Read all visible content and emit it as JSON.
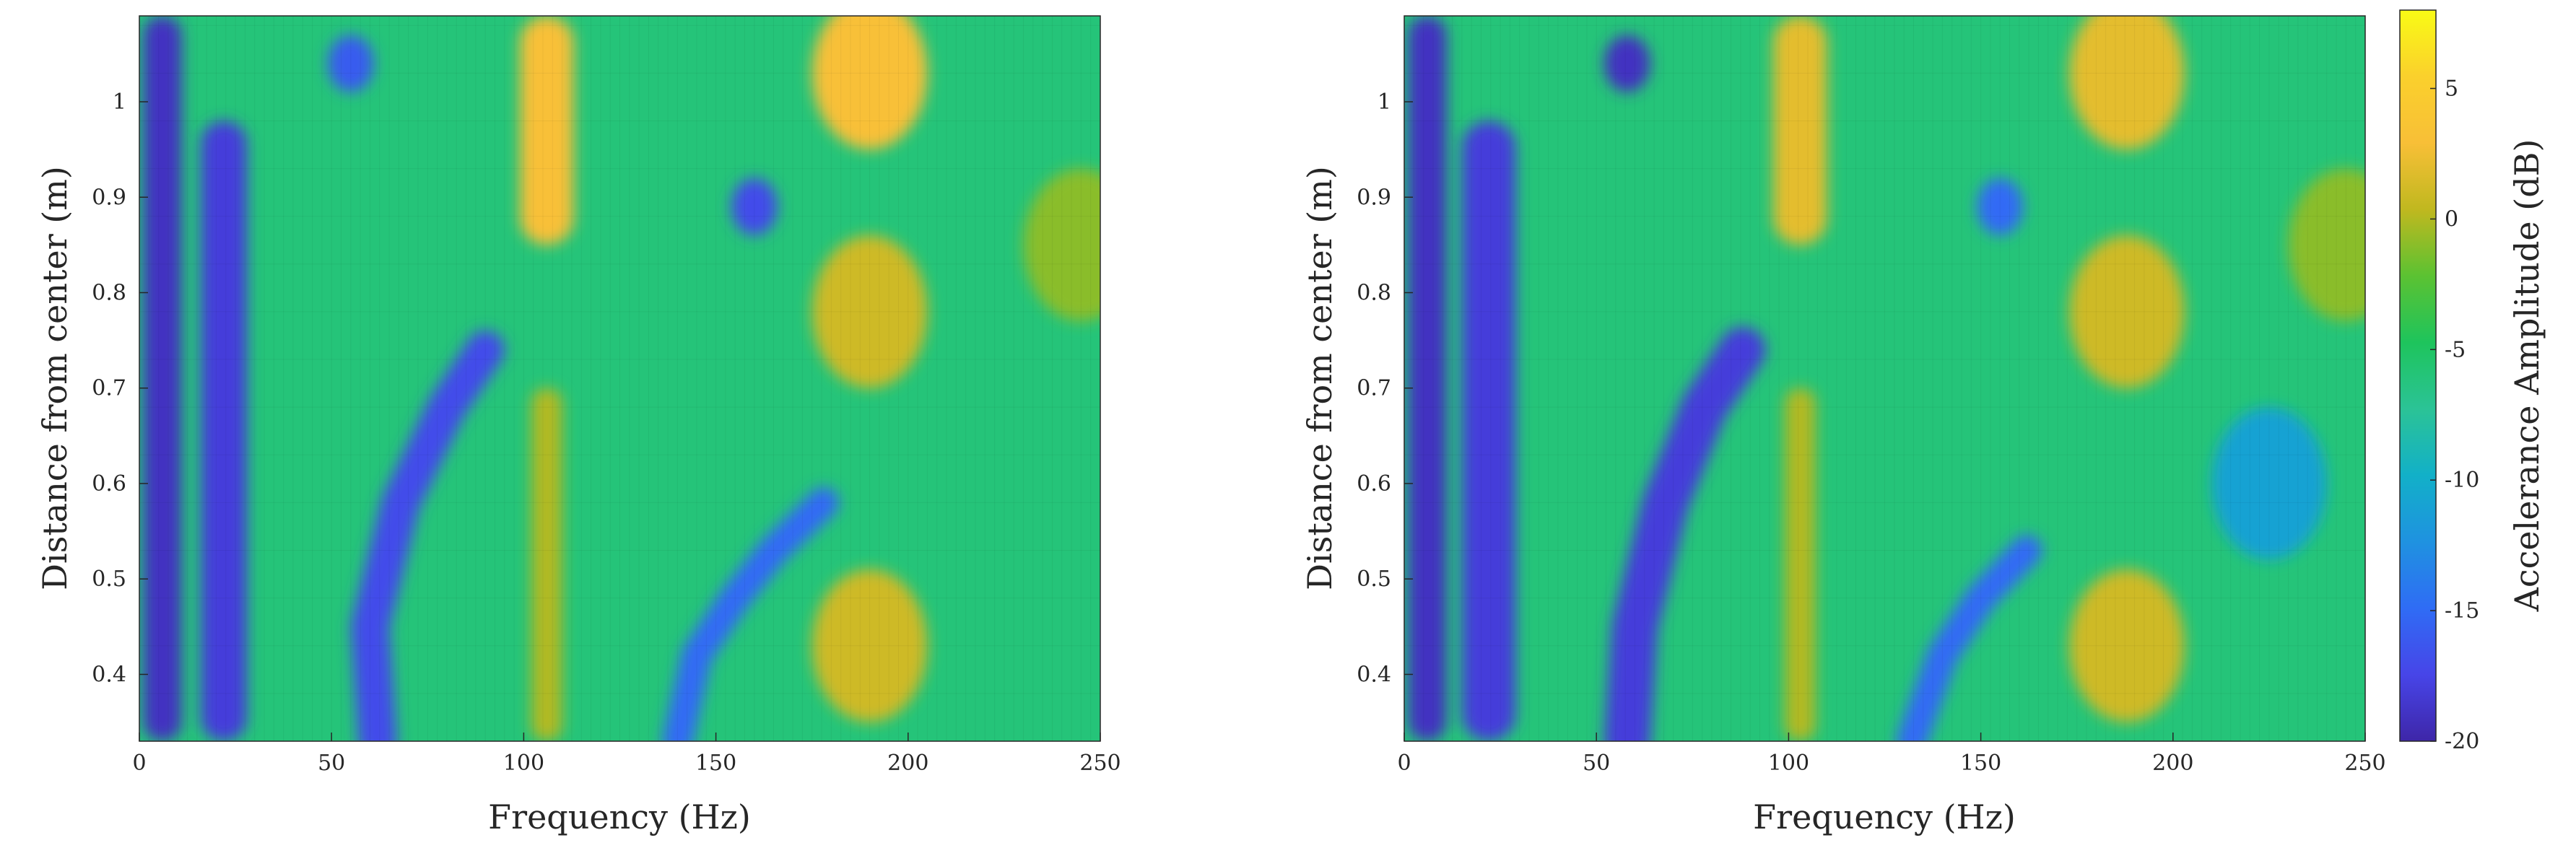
{
  "chart_data": [
    {
      "type": "heatmap",
      "xlabel": "Frequency (Hz)",
      "ylabel": "Distance from center (m)",
      "xlim": [
        0,
        250
      ],
      "ylim": [
        0.33,
        1.09
      ],
      "xticks": [
        0,
        50,
        100,
        150,
        200,
        250
      ],
      "yticks": [
        0.4,
        0.5,
        0.6,
        0.7,
        0.8,
        0.9,
        1
      ],
      "ytick_labels": [
        "0.4",
        "0.5",
        "0.6",
        "0.7",
        "0.8",
        "0.9",
        "1"
      ],
      "z_unit": "dB",
      "features": [
        {
          "kind": "band",
          "x": 6,
          "y": [
            0.33,
            1.09
          ],
          "value": -19,
          "width_hz": 5
        },
        {
          "kind": "band",
          "x": 22,
          "y": [
            0.33,
            0.98
          ],
          "value": -18,
          "width_hz": 6
        },
        {
          "kind": "ridge",
          "points": [
            [
              62,
              0.33
            ],
            [
              60,
              0.45
            ],
            [
              68,
              0.58
            ],
            [
              80,
              0.68
            ],
            [
              90,
              0.74
            ]
          ],
          "value": -17,
          "width_hz": 5
        },
        {
          "kind": "ridge",
          "points": [
            [
              140,
              0.33
            ],
            [
              145,
              0.42
            ],
            [
              155,
              0.48
            ],
            [
              165,
              0.53
            ],
            [
              178,
              0.58
            ]
          ],
          "value": -15,
          "width_hz": 4
        },
        {
          "kind": "band",
          "x": 106,
          "y": [
            0.85,
            1.09
          ],
          "value": 3,
          "width_hz": 7
        },
        {
          "kind": "band",
          "x": 106,
          "y": [
            0.33,
            0.7
          ],
          "value": 0,
          "width_hz": 4
        },
        {
          "kind": "blob",
          "x": 190,
          "y": 1.03,
          "value": 3
        },
        {
          "kind": "blob",
          "x": 190,
          "y": 0.78,
          "value": 1
        },
        {
          "kind": "blob",
          "x": 190,
          "y": 0.43,
          "value": 1
        },
        {
          "kind": "blob",
          "x": 245,
          "y": 0.85,
          "value": -1
        },
        {
          "kind": "hole",
          "x": 160,
          "y": 0.89,
          "value": -17
        },
        {
          "kind": "hole",
          "x": 55,
          "y": 1.04,
          "value": -16
        }
      ]
    },
    {
      "type": "heatmap",
      "xlabel": "Frequency (Hz)",
      "ylabel": "Distance from center (m)",
      "xlim": [
        0,
        250
      ],
      "ylim": [
        0.33,
        1.09
      ],
      "xticks": [
        0,
        50,
        100,
        150,
        200,
        250
      ],
      "yticks": [
        0.4,
        0.5,
        0.6,
        0.7,
        0.8,
        0.9,
        1
      ],
      "ytick_labels": [
        "0.4",
        "0.5",
        "0.6",
        "0.7",
        "0.8",
        "0.9",
        "1"
      ],
      "z_unit": "dB",
      "features": [
        {
          "kind": "band",
          "x": 6,
          "y": [
            0.33,
            1.09
          ],
          "value": -19,
          "width_hz": 5
        },
        {
          "kind": "band",
          "x": 22,
          "y": [
            0.33,
            0.98
          ],
          "value": -18,
          "width_hz": 7
        },
        {
          "kind": "ridge",
          "points": [
            [
              58,
              0.33
            ],
            [
              60,
              0.45
            ],
            [
              68,
              0.58
            ],
            [
              78,
              0.68
            ],
            [
              88,
              0.74
            ]
          ],
          "value": -18,
          "width_hz": 6
        },
        {
          "kind": "ridge",
          "points": [
            [
              132,
              0.33
            ],
            [
              140,
              0.42
            ],
            [
              150,
              0.48
            ],
            [
              162,
              0.53
            ]
          ],
          "value": -15,
          "width_hz": 4
        },
        {
          "kind": "band",
          "x": 103,
          "y": [
            0.85,
            1.09
          ],
          "value": 2,
          "width_hz": 7
        },
        {
          "kind": "band",
          "x": 103,
          "y": [
            0.33,
            0.7
          ],
          "value": 0,
          "width_hz": 4
        },
        {
          "kind": "blob",
          "x": 188,
          "y": 1.03,
          "value": 2
        },
        {
          "kind": "blob",
          "x": 188,
          "y": 0.78,
          "value": 1
        },
        {
          "kind": "blob",
          "x": 188,
          "y": 0.43,
          "value": 1
        },
        {
          "kind": "blob",
          "x": 245,
          "y": 0.85,
          "value": -1
        },
        {
          "kind": "hole",
          "x": 155,
          "y": 0.89,
          "value": -15
        },
        {
          "kind": "hole",
          "x": 58,
          "y": 1.04,
          "value": -19
        },
        {
          "kind": "blob",
          "x": 225,
          "y": 0.6,
          "value": -11
        }
      ]
    }
  ],
  "colorbar": {
    "label": "Accelerance Amplitude (dB)",
    "limits": [
      -20,
      8
    ],
    "ticks": [
      -20,
      -15,
      -10,
      -5,
      0,
      5
    ],
    "tick_labels": [
      "-20",
      "-15",
      "-10",
      "-5",
      "0",
      "5"
    ],
    "colormap": "parula",
    "colors": [
      "#3e26a8",
      "#4745e8",
      "#2f6cf5",
      "#1f92e0",
      "#12b0c8",
      "#2bc396",
      "#1ec45c",
      "#5bc232",
      "#c0b81f",
      "#f8bf37",
      "#fad02c",
      "#f9fb15"
    ],
    "background_value": -6
  }
}
